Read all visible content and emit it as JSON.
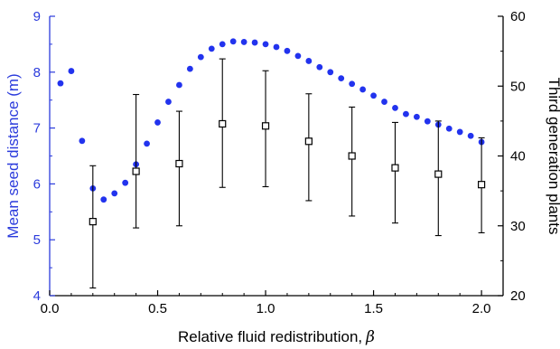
{
  "chart_data": {
    "type": "scatter",
    "title": "",
    "xlabel": "Relative fluid redistribution,",
    "xlabel_symbol": "β",
    "ylabel_left": "Mean seed distance (m)",
    "ylabel_right": "Third generation plants",
    "xlim": [
      0,
      2.1
    ],
    "ylim_left": [
      4,
      9
    ],
    "ylim_right": [
      20,
      60
    ],
    "x_ticks": [
      0.0,
      0.5,
      1.0,
      1.5,
      2.0
    ],
    "x_tick_labels": [
      "0.0",
      "0.5",
      "1.0",
      "1.5",
      "2.0"
    ],
    "y_left_ticks": [
      4,
      5,
      6,
      7,
      8,
      9
    ],
    "y_left_tick_labels": [
      "4",
      "5",
      "6",
      "7",
      "8",
      "9"
    ],
    "y_right_ticks": [
      20,
      30,
      40,
      50,
      60
    ],
    "y_right_tick_labels": [
      "20",
      "30",
      "40",
      "50",
      "60"
    ],
    "colors": {
      "left_axis": "#2b3bdc",
      "dots": "#2233ee",
      "right_axis": "#000000"
    },
    "series": [
      {
        "axis": "left",
        "marker": "filled-circle",
        "x": [
          0.05,
          0.1,
          0.15,
          0.2,
          0.25,
          0.3,
          0.35,
          0.4,
          0.45,
          0.5,
          0.55,
          0.6,
          0.65,
          0.7,
          0.75,
          0.8,
          0.85,
          0.9,
          0.95,
          1.0,
          1.05,
          1.1,
          1.15,
          1.2,
          1.25,
          1.3,
          1.35,
          1.4,
          1.45,
          1.5,
          1.55,
          1.6,
          1.65,
          1.7,
          1.75,
          1.8,
          1.85,
          1.9,
          1.95,
          2.0
        ],
        "y": [
          7.8,
          8.02,
          6.77,
          5.92,
          5.72,
          5.83,
          6.02,
          6.35,
          6.72,
          7.1,
          7.47,
          7.77,
          8.06,
          8.27,
          8.42,
          8.5,
          8.55,
          8.54,
          8.53,
          8.5,
          8.45,
          8.38,
          8.29,
          8.2,
          8.09,
          8.0,
          7.89,
          7.79,
          7.69,
          7.58,
          7.47,
          7.36,
          7.25,
          7.2,
          7.12,
          7.06,
          6.99,
          6.93,
          6.86,
          6.75
        ]
      },
      {
        "axis": "right",
        "marker": "open-square",
        "x": [
          0.2,
          0.4,
          0.6,
          0.8,
          1.0,
          1.2,
          1.4,
          1.6,
          1.8,
          2.0
        ],
        "y": [
          30.6,
          37.8,
          38.9,
          44.6,
          44.3,
          42.1,
          40.0,
          38.3,
          37.4,
          35.9
        ],
        "y_err_low": [
          21.1,
          29.7,
          30.0,
          35.5,
          35.6,
          33.6,
          31.4,
          30.4,
          28.6,
          29.0
        ],
        "y_err_high": [
          38.6,
          48.8,
          46.4,
          53.9,
          52.2,
          48.9,
          47.0,
          44.8,
          45.0,
          42.6
        ]
      }
    ]
  }
}
